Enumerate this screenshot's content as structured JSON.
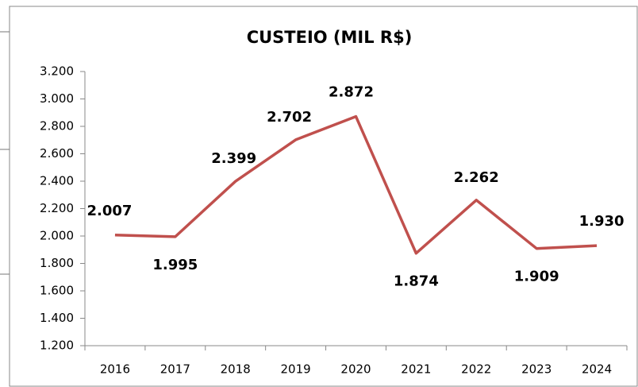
{
  "chart_data": {
    "type": "line",
    "title": "CUSTEIO (MIL R$)",
    "categories": [
      "2016",
      "2017",
      "2018",
      "2019",
      "2020",
      "2021",
      "2022",
      "2023",
      "2024"
    ],
    "series": [
      {
        "name": "CUSTEIO",
        "color": "#c0504d",
        "values": [
          2007,
          1995,
          2399,
          2702,
          2872,
          1874,
          2262,
          1909,
          1930
        ],
        "value_labels": [
          "2.007",
          "1.995",
          "2.399",
          "2.702",
          "2.872",
          "1.874",
          "2.262",
          "1.909",
          "1.930"
        ]
      }
    ],
    "ylim": [
      1200,
      3200
    ],
    "yticks": [
      {
        "value": 1200,
        "label": "1.200"
      },
      {
        "value": 1400,
        "label": "1.400"
      },
      {
        "value": 1600,
        "label": "1.600"
      },
      {
        "value": 1800,
        "label": "1.800"
      },
      {
        "value": 2000,
        "label": "2.000"
      },
      {
        "value": 2200,
        "label": "2.200"
      },
      {
        "value": 2400,
        "label": "2.400"
      },
      {
        "value": 2600,
        "label": "2.600"
      },
      {
        "value": 2800,
        "label": "2.800"
      },
      {
        "value": 3000,
        "label": "3.000"
      },
      {
        "value": 3200,
        "label": "3.200"
      }
    ],
    "grid": false
  }
}
